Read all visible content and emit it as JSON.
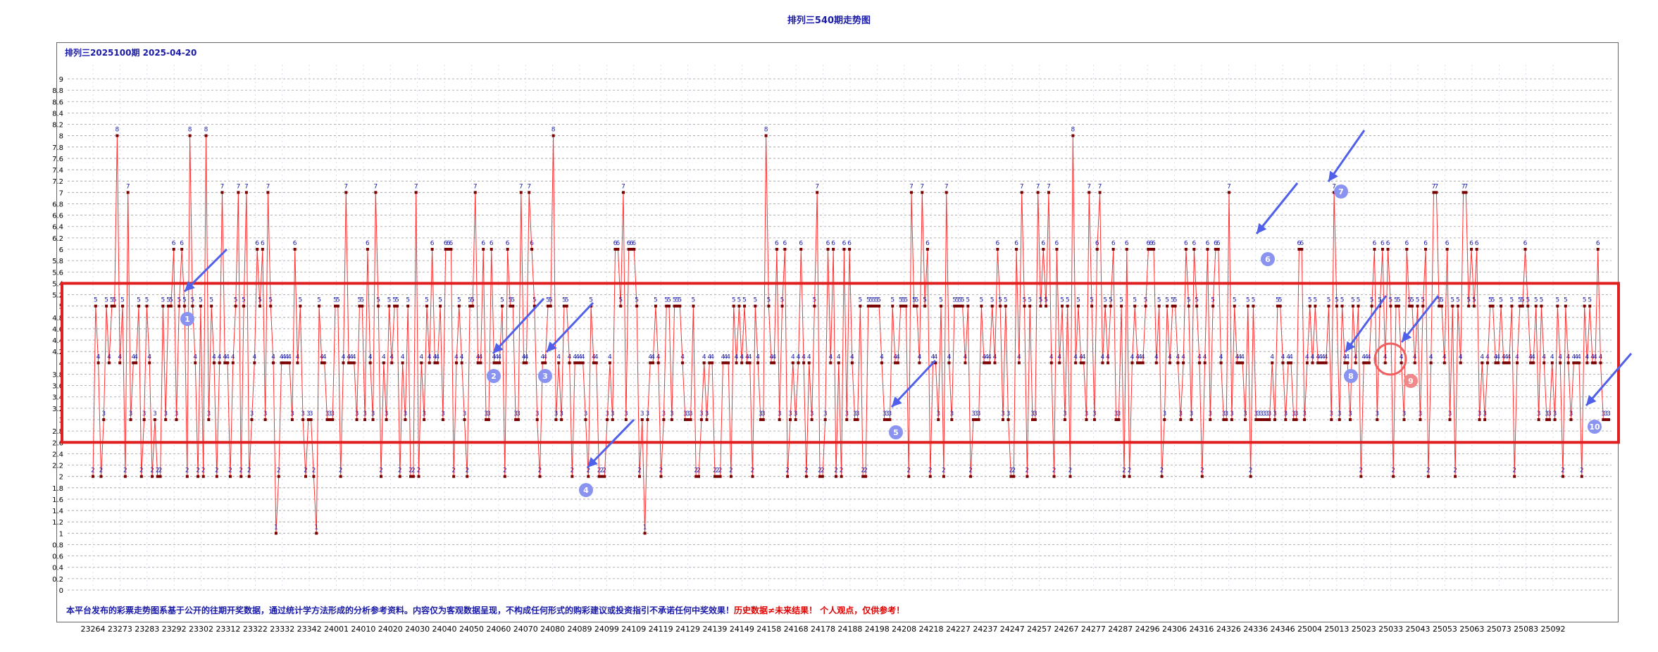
{
  "header": {
    "title": "排列三540期走势图"
  },
  "plot": {
    "subtitle": "排列三2025100期 2025-04-20"
  },
  "footer": {
    "disclaimer": "本平台发布的彩票走势图系基于公开的往期开奖数据，通过统计学方法形成的分析参考资料。内容仅为客观数据呈现，不构成任何形式的购彩建议或投资指引不承诺任何中奖效果！",
    "warning": "历史数据≠未来结果！ 个人观点，仅供参考！"
  },
  "colors": {
    "line": "#ff3030",
    "marker": "#7a0000",
    "label": "#1a1aa8",
    "highlight_box": "#e02020",
    "arrow": "#5060e8",
    "badge": "#8a94f0"
  },
  "chart_data": {
    "type": "line",
    "ylim": [
      0,
      9
    ],
    "yticks": [
      "0",
      "0.2",
      "0.4",
      "0.6",
      "0.8",
      "1",
      "1.2",
      "1.4",
      "1.6",
      "1.8",
      "2",
      "2.2",
      "2.4",
      "2.6",
      "2.8",
      "3",
      "3.2",
      "3.4",
      "3.6",
      "3.8",
      "4",
      "4.2",
      "4.4",
      "4.6",
      "4.8",
      "5",
      "5.2",
      "5.4",
      "5.6",
      "5.8",
      "6",
      "6.2",
      "6.4",
      "6.6",
      "6.8",
      "7",
      "7.2",
      "7.4",
      "7.6",
      "7.8",
      "8",
      "8.2",
      "8.4",
      "8.6",
      "8.8",
      "9"
    ],
    "x_tick_labels": [
      "23264",
      "23273",
      "23283",
      "23292",
      "23302",
      "23312",
      "23322",
      "23332",
      "23342",
      "24001",
      "24010",
      "24020",
      "24030",
      "24040",
      "24050",
      "24060",
      "24070",
      "24080",
      "24089",
      "24099",
      "24109",
      "24119",
      "24129",
      "24139",
      "24149",
      "24158",
      "24168",
      "24178",
      "24188",
      "24198",
      "24208",
      "24218",
      "24227",
      "24237",
      "24247",
      "24257",
      "24267",
      "24277",
      "24287",
      "24296",
      "24306",
      "24316",
      "24326",
      "24336",
      "24346",
      "25004",
      "25013",
      "25023",
      "25033",
      "25043",
      "25053",
      "25063",
      "25073",
      "25083",
      "25092"
    ],
    "grid": true,
    "series": [
      {
        "values": [
          2,
          5,
          4,
          2,
          3,
          5,
          4,
          5,
          5,
          8,
          4,
          5,
          2,
          7,
          3,
          4,
          4,
          5,
          2,
          3,
          5,
          4,
          2,
          3,
          2,
          2,
          5,
          3,
          5,
          5,
          6,
          3,
          5,
          6,
          5,
          2,
          8,
          5,
          4,
          2,
          5,
          2,
          8,
          3,
          5,
          4,
          2,
          4,
          7,
          4,
          4,
          2,
          4,
          5,
          7,
          2,
          5,
          7,
          2,
          3,
          4,
          6,
          5,
          6,
          3,
          7,
          5,
          4,
          1,
          2,
          4,
          4,
          4,
          4,
          3,
          6,
          4,
          5,
          3,
          2,
          3,
          3,
          2,
          1,
          5,
          4,
          4,
          3,
          3,
          3,
          5,
          5,
          2,
          4,
          7,
          4,
          4,
          4,
          3,
          5,
          5,
          3,
          6,
          4,
          3,
          7,
          5,
          2,
          4,
          3,
          5,
          4,
          5,
          5,
          2,
          4,
          3,
          5,
          2,
          2,
          7,
          2,
          4,
          3,
          5,
          4,
          6,
          4,
          4,
          5,
          3,
          6,
          6,
          6,
          2,
          4,
          5,
          4,
          3,
          2,
          5,
          5,
          7,
          4,
          4,
          6,
          3,
          3,
          6,
          4,
          4,
          4,
          5,
          2,
          6,
          5,
          5,
          3,
          3,
          7,
          4,
          4,
          7,
          6,
          5,
          3,
          2,
          4,
          4,
          5,
          5,
          8,
          3,
          4,
          3,
          5,
          5,
          4,
          2,
          4,
          4,
          4,
          4,
          3,
          2,
          5,
          4,
          4,
          2,
          2,
          2,
          3,
          4,
          3,
          6,
          6,
          5,
          7,
          3,
          6,
          6,
          6,
          5,
          2,
          3,
          1,
          3,
          4,
          4,
          5,
          4,
          2,
          3,
          5,
          5,
          3,
          5,
          5,
          5,
          4,
          3,
          3,
          3,
          5,
          2,
          2,
          3,
          4,
          3,
          4,
          4,
          2,
          2,
          2,
          4,
          4,
          4,
          2,
          5,
          4,
          5,
          4,
          5,
          4,
          4,
          2,
          5,
          4,
          3,
          3,
          8,
          5,
          4,
          4,
          6,
          3,
          5,
          6,
          2,
          3,
          4,
          3,
          4,
          6,
          4,
          2,
          4,
          3,
          5,
          7,
          2,
          2,
          3,
          6,
          4,
          6,
          2,
          4,
          2,
          6,
          3,
          6,
          4,
          3,
          3,
          5,
          2,
          2,
          5,
          5,
          5,
          5,
          5,
          4,
          3,
          3,
          3,
          5,
          4,
          4,
          5,
          5,
          5,
          2,
          7,
          5,
          5,
          4,
          7,
          5,
          6,
          2,
          4,
          4,
          3,
          5,
          2,
          7,
          4,
          3,
          5,
          5,
          5,
          5,
          4,
          5,
          2,
          3,
          3,
          3,
          5,
          4,
          4,
          4,
          5,
          4,
          6,
          5,
          3,
          5,
          3,
          2,
          2,
          6,
          4,
          7,
          5,
          2,
          5,
          3,
          3,
          7,
          5,
          6,
          5,
          7,
          4,
          2,
          6,
          4,
          5,
          3,
          5,
          2,
          8,
          4,
          5,
          4,
          4,
          3,
          7,
          5,
          3,
          6,
          7,
          4,
          5,
          4,
          5,
          6,
          3,
          3,
          5,
          2,
          6,
          2,
          4,
          5,
          4,
          4,
          4,
          5,
          6,
          6,
          6,
          4,
          5,
          2,
          3,
          5,
          4,
          5,
          5,
          4,
          3,
          4,
          6,
          5,
          3,
          6,
          5,
          4,
          2,
          4,
          6,
          3,
          5,
          6,
          6,
          4,
          3,
          3,
          7,
          3,
          5,
          4,
          4,
          4,
          3,
          5,
          2,
          5,
          3,
          3,
          3,
          3,
          3,
          3,
          4,
          3,
          5,
          5,
          4,
          3,
          4,
          4,
          3,
          3,
          6,
          6,
          3,
          4,
          5,
          4,
          5,
          4,
          4,
          4,
          4,
          5,
          3,
          7,
          5,
          3,
          5,
          4,
          4,
          3,
          5,
          4,
          5,
          2,
          4,
          4,
          4,
          5,
          6,
          3,
          5,
          6,
          4,
          6,
          5,
          2,
          5,
          5,
          4,
          3,
          6,
          5,
          5,
          4,
          5,
          3,
          5,
          6,
          2,
          4,
          7,
          7,
          5,
          5,
          4,
          6,
          3,
          5,
          2,
          5,
          4,
          7,
          7,
          5,
          6,
          5,
          6,
          3,
          4,
          3,
          4,
          5,
          5,
          4,
          4,
          5,
          4,
          4,
          4,
          5,
          2,
          4,
          5,
          5,
          6,
          5,
          4,
          4,
          5,
          3,
          5,
          4,
          3,
          3,
          4,
          3,
          5,
          4,
          2,
          5,
          4,
          3,
          4,
          4,
          4,
          2,
          5,
          4,
          5,
          4,
          4,
          6,
          4,
          3,
          3,
          3
        ]
      }
    ],
    "point_labels_shown": true,
    "annotations": [
      {
        "label": "1",
        "type": "arrow"
      },
      {
        "label": "2",
        "type": "arrow"
      },
      {
        "label": "3",
        "type": "arrow"
      },
      {
        "label": "4",
        "type": "arrow"
      },
      {
        "label": "5",
        "type": "arrow"
      },
      {
        "label": "6",
        "type": "arrow"
      },
      {
        "label": "7",
        "type": "arrow"
      },
      {
        "label": "8",
        "type": "arrow"
      },
      {
        "label": "9",
        "type": "circle-arrow"
      },
      {
        "label": "10",
        "type": "arrow"
      }
    ],
    "highlight_band": [
      3,
      5.4
    ]
  }
}
